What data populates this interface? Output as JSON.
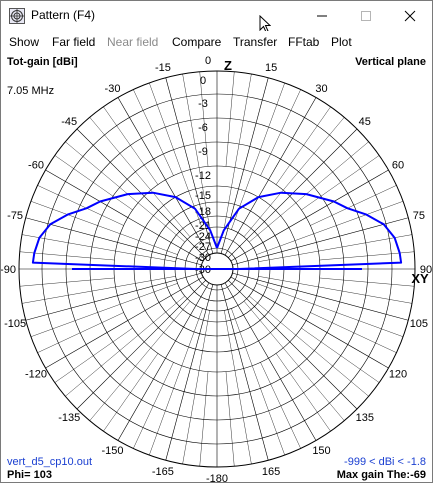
{
  "window": {
    "title": "Pattern   (F4)"
  },
  "menu": {
    "items": [
      {
        "label": "Show",
        "enabled": true
      },
      {
        "label": "Far field",
        "enabled": true
      },
      {
        "label": "Near field",
        "enabled": false
      },
      {
        "label": "Compare",
        "enabled": true
      },
      {
        "label": "Transfer",
        "enabled": true
      },
      {
        "label": "FFtab",
        "enabled": true
      },
      {
        "label": "Plot",
        "enabled": true
      }
    ]
  },
  "plot": {
    "gain_label": "Tot-gain [dBi]",
    "plane_label": "Vertical plane",
    "frequency": "7.05 MHz",
    "filename": "vert_d5_cp10.out",
    "phi": "Phi= 103",
    "dbi_range": "-999 < dBi < -1.8",
    "max_gain": "Max gain The:-69",
    "axis_top": "Z",
    "axis_right": "XY",
    "curve_color": "#0000ff"
  },
  "chart_data": {
    "type": "polar",
    "plane": "Vertical plane",
    "angle_tick_labels": [
      "0",
      "15",
      "30",
      "45",
      "60",
      "75",
      "90",
      "105",
      "120",
      "135",
      "150",
      "165",
      "-180",
      "-165",
      "-150",
      "-135",
      "-120",
      "-105",
      "-90",
      "-75",
      "-60",
      "-45",
      "-30",
      "-15"
    ],
    "radial_tick_labels": [
      "0",
      "-3",
      "-6",
      "-9",
      "-12",
      "-15",
      "-18",
      "-21",
      "-24",
      "-27",
      "-30"
    ],
    "series": [
      {
        "theta_deg": [
          0,
          10,
          20,
          30,
          40,
          50,
          60,
          65,
          70,
          75,
          80,
          85,
          88,
          90
        ],
        "gain_dbi": [
          -30,
          -24.8,
          -18.6,
          -15,
          -12.5,
          -10.3,
          -8,
          -6.9,
          -5,
          -3.3,
          -2.3,
          -1.9,
          -1.8,
          -30
        ]
      }
    ]
  }
}
